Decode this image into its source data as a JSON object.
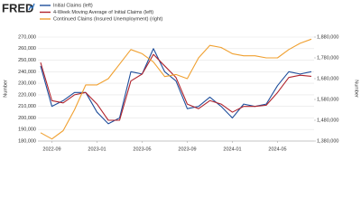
{
  "chart_data": {
    "type": "line",
    "logo": "FRED",
    "y_label": "Number",
    "y2_label": "Number",
    "categories": [
      null,
      "2022-09",
      null,
      null,
      null,
      "2023-01",
      null,
      null,
      null,
      "2023-05",
      null,
      null,
      null,
      "2023-09",
      null,
      null,
      null,
      "2024-01",
      null,
      null,
      null,
      "2024-05",
      null,
      null,
      null
    ],
    "series": [
      {
        "name": "Initial Claims (left)",
        "color": "#1f4e9b",
        "axis": "y",
        "values": [
          245000,
          210000,
          215000,
          222000,
          222000,
          205000,
          195000,
          200000,
          240000,
          238000,
          260000,
          240000,
          232000,
          208000,
          210000,
          218000,
          210000,
          200000,
          212000,
          210000,
          212000,
          228000,
          240000,
          238000,
          240000
        ]
      },
      {
        "name": "4-Week Moving Average of Initial Claims (left)",
        "color": "#b0242d",
        "axis": "y",
        "values": [
          248000,
          215000,
          213000,
          220000,
          222000,
          212000,
          198000,
          198000,
          232000,
          238000,
          255000,
          245000,
          235000,
          212000,
          208000,
          215000,
          212000,
          205000,
          210000,
          210000,
          211000,
          222000,
          235000,
          237000,
          236000
        ]
      },
      {
        "name": "Continued Claims (Insured Unemployment) (right)",
        "color": "#f0a030",
        "axis": "y2",
        "values": [
          1420000,
          1390000,
          1430000,
          1530000,
          1650000,
          1650000,
          1680000,
          1750000,
          1820000,
          1800000,
          1760000,
          1690000,
          1700000,
          1680000,
          1780000,
          1840000,
          1830000,
          1800000,
          1790000,
          1790000,
          1780000,
          1780000,
          1820000,
          1850000,
          1870000
        ]
      }
    ],
    "ylim": [
      180000,
      270000
    ],
    "yticks": [
      {
        "value": 180000,
        "label": "180,000"
      },
      {
        "value": 190000,
        "label": "190,000"
      },
      {
        "value": 200000,
        "label": "200,000"
      },
      {
        "value": 210000,
        "label": "210,000"
      },
      {
        "value": 220000,
        "label": "220,000"
      },
      {
        "value": 230000,
        "label": "230,000"
      },
      {
        "value": 240000,
        "label": "240,000"
      },
      {
        "value": 250000,
        "label": "250,000"
      },
      {
        "value": 260000,
        "label": "260,000"
      },
      {
        "value": 270000,
        "label": "270,000"
      }
    ],
    "y2lim": [
      1380000,
      1880000
    ],
    "y2ticks": [
      {
        "value": 1380000,
        "label": "1,380,000"
      },
      {
        "value": 1480000,
        "label": "1,480,000"
      },
      {
        "value": 1580000,
        "label": "1,580,000"
      },
      {
        "value": 1680000,
        "label": "1,680,000"
      },
      {
        "value": 1780000,
        "label": "1,780,000"
      },
      {
        "value": 1880000,
        "label": "1,880,000"
      }
    ],
    "grid": true
  }
}
